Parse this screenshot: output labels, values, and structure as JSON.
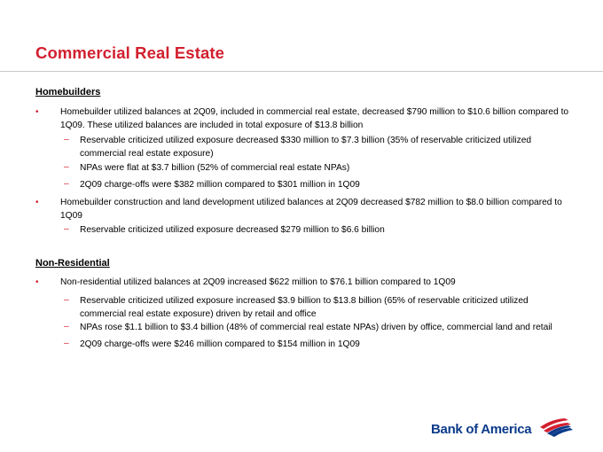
{
  "title": "Commercial Real Estate",
  "homebuilders": {
    "heading": "Homebuilders",
    "bullet1": "Homebuilder utilized balances at 2Q09, included in commercial real estate, decreased $790 million to $10.6 billion compared to 1Q09. These utilized balances are included in total exposure of $13.8 billion",
    "sub1": "Reservable criticized utilized exposure decreased $330 million to $7.3 billion (35% of reservable criticized utilized commercial real estate exposure)",
    "sub2": "NPAs were flat at $3.7 billion (52% of commercial real estate NPAs)",
    "sub3": "2Q09 charge-offs were $382 million compared to $301 million in 1Q09",
    "bullet2": "Homebuilder construction and land development utilized balances at 2Q09 decreased $782 million to $8.0 billion compared to 1Q09",
    "sub4": "Reservable criticized utilized exposure decreased $279 million to $6.6 billion"
  },
  "nonresidential": {
    "heading": "Non-Residential",
    "bullet1": "Non-residential utilized balances at 2Q09 increased $622 million to $76.1 billion compared to 1Q09",
    "sub1": "Reservable criticized utilized exposure increased $3.9 billion to $13.8 billion (65% of reservable criticized utilized commercial real estate exposure) driven by retail and office",
    "sub2": "NPAs rose $1.1 billion to $3.4 billion (48% of commercial real estate NPAs) driven by office, commercial land and retail",
    "sub3": "2Q09 charge-offs were $246 million compared to $154 million in 1Q09"
  },
  "logo": {
    "text": "Bank of America",
    "icon": "bank-of-america-flag-icon"
  },
  "colors": {
    "title": "#d2202f",
    "bullet": "#d2202f",
    "logo_blue": "#0b3a8a",
    "logo_red": "#d2202f"
  },
  "markers": {
    "bullet": "•",
    "dash": "–"
  }
}
